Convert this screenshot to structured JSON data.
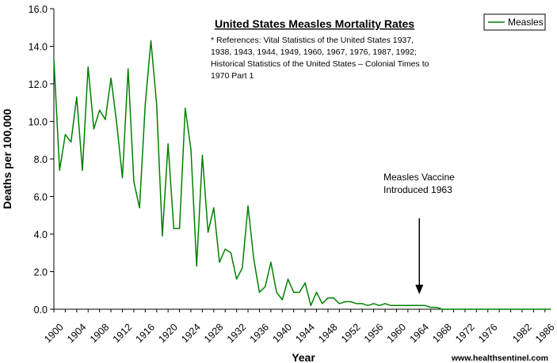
{
  "chart_data": {
    "type": "line",
    "title": "United States Measles Mortality Rates",
    "references": [
      "* References: Vital Statistics of the United States 1937,",
      "1938, 1943, 1944, 1949, 1960, 1967, 1976, 1987, 1992;",
      "Historical Statistics of the United States – Colonial Times to",
      "1970 Part 1"
    ],
    "xlabel": "Year",
    "ylabel": "Deaths per 100,000",
    "ylim": [
      0,
      16
    ],
    "yticks": [
      "0.0",
      "2.0",
      "4.0",
      "6.0",
      "8.0",
      "10.0",
      "12.0",
      "14.0",
      "16.0"
    ],
    "xlim": [
      1900,
      1987
    ],
    "xticks": [
      "1900",
      "1904",
      "1908",
      "1912",
      "1916",
      "1920",
      "1924",
      "1928",
      "1932",
      "1936",
      "1940",
      "1944",
      "1948",
      "1952",
      "1956",
      "1960",
      "1964",
      "1968",
      "1972",
      "1976",
      "1982",
      "1986"
    ],
    "grid": false,
    "legend_position": "top-right",
    "series": [
      {
        "name": "Measles",
        "color": "#008000",
        "x": [
          1900,
          1901,
          1902,
          1903,
          1904,
          1905,
          1906,
          1907,
          1908,
          1909,
          1910,
          1911,
          1912,
          1913,
          1914,
          1915,
          1916,
          1917,
          1918,
          1919,
          1920,
          1921,
          1922,
          1923,
          1924,
          1925,
          1926,
          1927,
          1928,
          1929,
          1930,
          1931,
          1932,
          1933,
          1934,
          1935,
          1936,
          1937,
          1938,
          1939,
          1940,
          1941,
          1942,
          1943,
          1944,
          1945,
          1946,
          1947,
          1948,
          1949,
          1950,
          1951,
          1952,
          1953,
          1954,
          1955,
          1956,
          1957,
          1958,
          1959,
          1960,
          1961,
          1962,
          1963,
          1964,
          1965,
          1966,
          1967,
          1968,
          1969,
          1970,
          1971,
          1972,
          1973,
          1974,
          1975,
          1976,
          1977,
          1978,
          1979,
          1980,
          1981,
          1982,
          1983,
          1984,
          1985,
          1986,
          1987
        ],
        "values": [
          13.3,
          7.4,
          9.3,
          8.9,
          11.3,
          7.4,
          12.9,
          9.6,
          10.6,
          10.1,
          12.3,
          9.9,
          7.0,
          12.8,
          6.8,
          5.4,
          10.9,
          14.3,
          10.9,
          3.9,
          8.8,
          4.3,
          4.3,
          10.7,
          8.5,
          2.3,
          8.2,
          4.1,
          5.4,
          2.5,
          3.2,
          3.0,
          1.6,
          2.2,
          5.5,
          2.7,
          0.9,
          1.2,
          2.5,
          0.9,
          0.5,
          1.6,
          0.9,
          0.9,
          1.4,
          0.2,
          0.9,
          0.3,
          0.6,
          0.6,
          0.3,
          0.4,
          0.4,
          0.3,
          0.3,
          0.2,
          0.3,
          0.2,
          0.3,
          0.2,
          0.2,
          0.2,
          0.2,
          0.2,
          0.2,
          0.2,
          0.1,
          0.1,
          0.0,
          0.0,
          0.0,
          0.0,
          0.0,
          0.0,
          0.0,
          0.0,
          0.0,
          0.0,
          0.0,
          0.0,
          0.0,
          0.0,
          0.0,
          0.0,
          0.0,
          0.0,
          0.0,
          0.0
        ]
      }
    ],
    "annotations": [
      {
        "text_lines": [
          "Measles Vaccine",
          "Introduced 1963"
        ],
        "arrow_x": 1964,
        "arrow_y": 0.8
      }
    ],
    "credit": "www.healthsentinel.com"
  }
}
